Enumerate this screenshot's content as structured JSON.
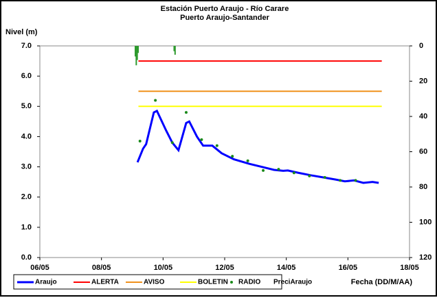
{
  "chart_data": {
    "type": "line",
    "title": "Estación Puerto Araujo - Río Carare",
    "subtitle": "Puerto Araujo-Santander",
    "y_label": "Nivel (m)",
    "x_label": "Fecha (DD/M/AA)",
    "xlim": [
      6,
      18
    ],
    "xticks": [
      {
        "value": 6,
        "label": "06/05"
      },
      {
        "value": 8,
        "label": "08/05"
      },
      {
        "value": 10,
        "label": "10/05"
      },
      {
        "value": 12,
        "label": "12/05"
      },
      {
        "value": 14,
        "label": "14/05"
      },
      {
        "value": 16,
        "label": "16/05"
      },
      {
        "value": 18,
        "label": "18/05"
      }
    ],
    "ylim": [
      0,
      7
    ],
    "yticks": [
      {
        "value": 0,
        "label": "0.0"
      },
      {
        "value": 1,
        "label": "1.0"
      },
      {
        "value": 2,
        "label": "2.0"
      },
      {
        "value": 3,
        "label": "3.0"
      },
      {
        "value": 4,
        "label": "4.0"
      },
      {
        "value": 5,
        "label": "5.0"
      },
      {
        "value": 6,
        "label": "6.0"
      },
      {
        "value": 7,
        "label": "7.0"
      }
    ],
    "y2lim": [
      120,
      0
    ],
    "y2ticks": [
      0,
      20,
      40,
      60,
      80,
      100,
      120
    ],
    "series": [
      {
        "name": "Araujo",
        "color": "#0000ff",
        "kind": "line",
        "x": [
          9.17,
          9.35,
          9.45,
          9.7,
          9.8,
          10.1,
          10.3,
          10.5,
          10.75,
          10.85,
          11.1,
          11.3,
          11.6,
          11.9,
          12.3,
          12.8,
          13.2,
          13.6,
          13.9,
          14.05,
          14.4,
          14.8,
          15.2,
          15.6,
          15.9,
          16.2,
          16.5,
          16.8,
          17.0
        ],
        "values": [
          3.15,
          3.6,
          3.75,
          4.8,
          4.85,
          4.2,
          3.8,
          3.55,
          4.45,
          4.5,
          4.0,
          3.7,
          3.7,
          3.45,
          3.25,
          3.1,
          3.0,
          2.9,
          2.87,
          2.88,
          2.8,
          2.72,
          2.65,
          2.58,
          2.52,
          2.55,
          2.47,
          2.5,
          2.47
        ]
      },
      {
        "name": "ALERTA",
        "color": "#ff0000",
        "kind": "line",
        "x": [
          9.2,
          17.1
        ],
        "values": [
          6.5,
          6.5
        ]
      },
      {
        "name": "AVISO",
        "color": "#f0901a",
        "kind": "line",
        "x": [
          9.2,
          17.1
        ],
        "values": [
          5.5,
          5.5
        ]
      },
      {
        "name": "BOLETIN",
        "color": "#ffff00",
        "kind": "line",
        "x": [
          9.2,
          17.1
        ],
        "values": [
          5.0,
          5.0
        ]
      },
      {
        "name": "RADIO",
        "color": "#1a8a1a",
        "kind": "points",
        "x": [
          9.25,
          9.75,
          10.3,
          10.75,
          11.25,
          11.75,
          12.25,
          12.75,
          13.25,
          13.75,
          14.25,
          14.75,
          15.25,
          15.75,
          16.25
        ],
        "values": [
          3.85,
          5.2,
          3.8,
          4.8,
          3.9,
          3.7,
          3.35,
          3.2,
          2.88,
          2.92,
          2.8,
          2.7,
          2.65,
          2.55,
          2.55
        ]
      },
      {
        "name": "PreciAraujo",
        "color": "#2e9a2e",
        "kind": "bars",
        "axis": "y2",
        "x": [
          9.1,
          9.13,
          9.16,
          9.19,
          10.36,
          10.39
        ],
        "values": [
          6,
          11,
          8,
          4,
          3,
          5
        ]
      }
    ]
  }
}
